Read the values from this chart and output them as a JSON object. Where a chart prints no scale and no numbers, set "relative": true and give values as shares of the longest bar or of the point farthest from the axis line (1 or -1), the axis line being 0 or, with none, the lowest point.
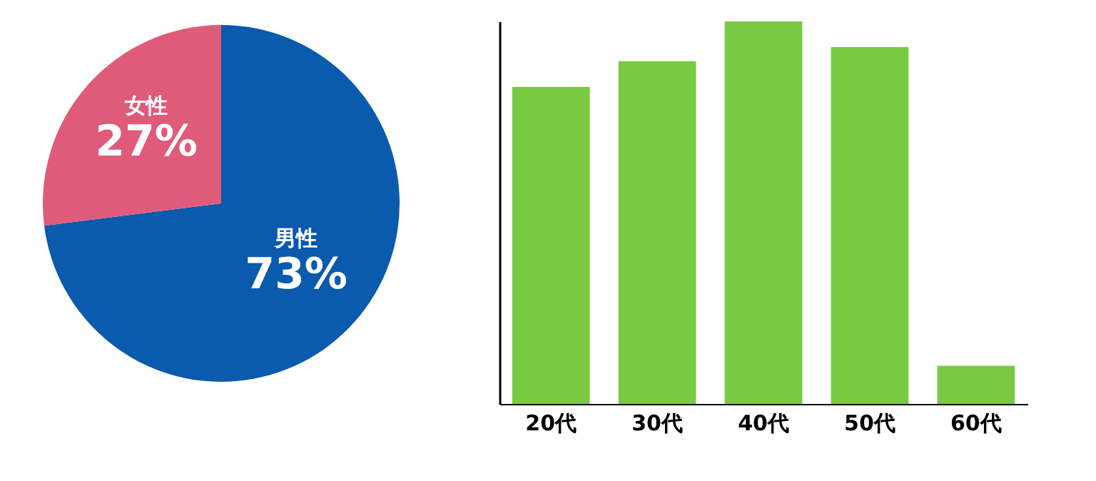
{
  "chart_data": [
    {
      "type": "pie",
      "categories": [
        "男性",
        "女性"
      ],
      "values": [
        73,
        27
      ],
      "colors": [
        "#0a5aad",
        "#e05a7a"
      ],
      "value_labels": [
        "73%",
        "27%"
      ],
      "legend": false
    },
    {
      "type": "bar",
      "relative": true,
      "categories": [
        "20代",
        "30代",
        "40代",
        "50代",
        "60代"
      ],
      "values": [
        0.829,
        0.896,
        1,
        0.933,
        0.1
      ],
      "color": "#7ac943",
      "grid": false,
      "tick_labels": "x"
    }
  ]
}
